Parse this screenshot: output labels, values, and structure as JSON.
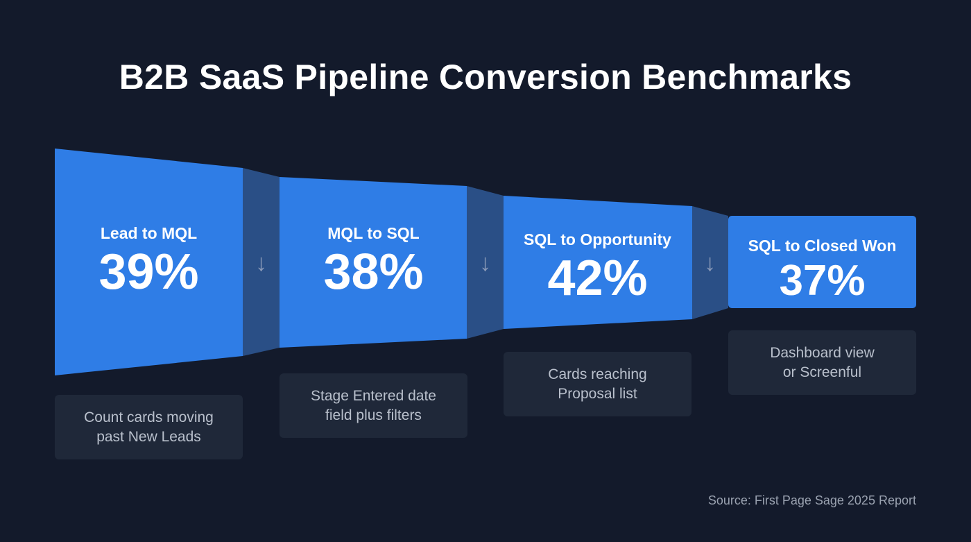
{
  "title": "B2B SaaS Pipeline Conversion Benchmarks",
  "colors": {
    "background": "#131a2b",
    "stage": "#2f7de6",
    "connector": "#2a4f86",
    "caption_bg": "#1f2839"
  },
  "stages": [
    {
      "label": "Lead to MQL",
      "value": "39%",
      "caption": "Count cards moving past New Leads"
    },
    {
      "label": "MQL to SQL",
      "value": "38%",
      "caption": "Stage Entered date field plus filters"
    },
    {
      "label": "SQL to Opportunity",
      "value": "42%",
      "caption": "Cards reaching Proposal list"
    },
    {
      "label": "SQL to Closed Won",
      "value": "37%",
      "caption": "Dashboard view or Screenful"
    }
  ],
  "arrow_icon": "↓",
  "source": "Source: First Page Sage 2025 Report"
}
